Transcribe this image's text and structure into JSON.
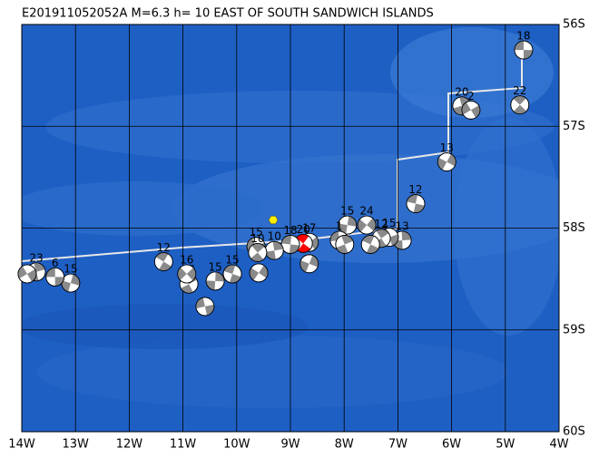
{
  "title": "E201911052052A M=6.3 h= 10 EAST OF SOUTH SANDWICH ISLANDS",
  "map": {
    "lonlim": [
      -14,
      -4
    ],
    "latlim": [
      -56,
      -60
    ],
    "lon_ticks": [
      {
        "value": -14,
        "label": "14W"
      },
      {
        "value": -13,
        "label": "13W"
      },
      {
        "value": -12,
        "label": "12W"
      },
      {
        "value": -11,
        "label": "11W"
      },
      {
        "value": -10,
        "label": "10W"
      },
      {
        "value": -9,
        "label": "9W"
      },
      {
        "value": -8,
        "label": "8W"
      },
      {
        "value": -7,
        "label": "7W"
      },
      {
        "value": -6,
        "label": "6W"
      },
      {
        "value": -5,
        "label": "5W"
      },
      {
        "value": -4,
        "label": "4W"
      }
    ],
    "lat_ticks": [
      {
        "value": -56,
        "label": "56S"
      },
      {
        "value": -57,
        "label": "57S"
      },
      {
        "value": -58,
        "label": "58S"
      },
      {
        "value": -59,
        "label": "59S"
      },
      {
        "value": -60,
        "label": "60S"
      }
    ],
    "ball_color": "#8a8a8a",
    "epicenter": {
      "lon": -9.32,
      "lat": -57.92,
      "color": "#ffee00"
    },
    "events": [
      {
        "lon": -4.66,
        "lat": -56.25,
        "label": "18"
      },
      {
        "lon": -5.81,
        "lat": -56.8,
        "label": "20"
      },
      {
        "lon": -5.64,
        "lat": -56.84,
        "label": "2"
      },
      {
        "lon": -4.73,
        "lat": -56.79,
        "label": "22"
      },
      {
        "lon": -6.09,
        "lat": -57.35,
        "label": "13"
      },
      {
        "lon": -6.67,
        "lat": -57.76,
        "label": "12"
      },
      {
        "lon": -6.92,
        "lat": -58.12,
        "label": "13"
      },
      {
        "lon": -7.16,
        "lat": -58.09,
        "label": "15"
      },
      {
        "lon": -7.31,
        "lat": -58.1,
        "label": "12"
      },
      {
        "lon": -7.58,
        "lat": -57.97,
        "label": "24"
      },
      {
        "lon": -7.51,
        "lat": -58.16
      },
      {
        "lon": -7.94,
        "lat": -57.97,
        "label": "15"
      },
      {
        "lon": -8.09,
        "lat": -58.12,
        "label": "1"
      },
      {
        "lon": -7.99,
        "lat": -58.16
      },
      {
        "lon": -8.65,
        "lat": -58.14,
        "label": "17"
      },
      {
        "lon": -8.76,
        "lat": -58.15,
        "label": "20",
        "color": "#ff0000"
      },
      {
        "lon": -8.65,
        "lat": -58.35
      },
      {
        "lon": -9.0,
        "lat": -58.16,
        "label": "18"
      },
      {
        "lon": -9.3,
        "lat": -58.22,
        "label": "10"
      },
      {
        "lon": -9.64,
        "lat": -58.18,
        "label": "15"
      },
      {
        "lon": -9.61,
        "lat": -58.24,
        "label": "10"
      },
      {
        "lon": -9.59,
        "lat": -58.44
      },
      {
        "lon": -10.08,
        "lat": -58.45,
        "label": "15"
      },
      {
        "lon": -10.4,
        "lat": -58.52,
        "label": "15"
      },
      {
        "lon": -10.59,
        "lat": -58.77
      },
      {
        "lon": -10.89,
        "lat": -58.55,
        "label": "15"
      },
      {
        "lon": -10.93,
        "lat": -58.45,
        "label": "16"
      },
      {
        "lon": -11.36,
        "lat": -58.33,
        "label": "12"
      },
      {
        "lon": -13.09,
        "lat": -58.54,
        "label": "15"
      },
      {
        "lon": -13.38,
        "lat": -58.48,
        "label": "6"
      },
      {
        "lon": -13.73,
        "lat": -58.43,
        "label": "23"
      },
      {
        "lon": -13.9,
        "lat": -58.45
      }
    ]
  }
}
